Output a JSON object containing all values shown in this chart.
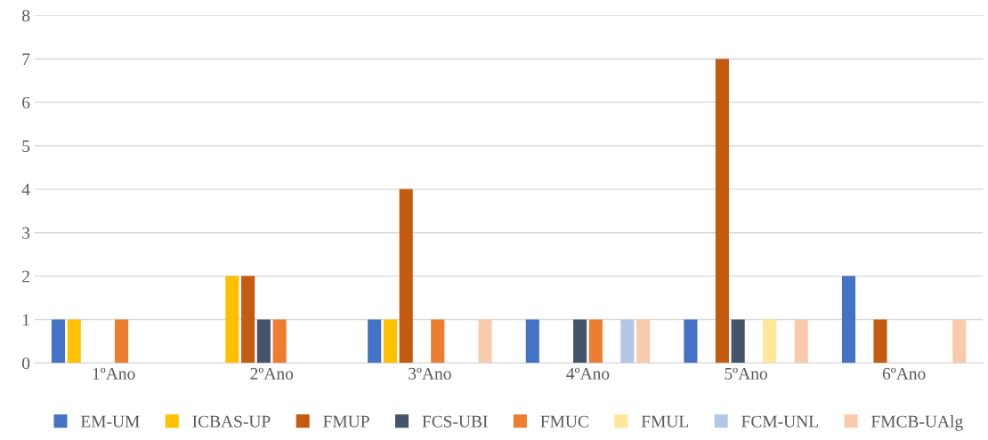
{
  "chart_data": {
    "type": "bar",
    "categories": [
      "1ºAno",
      "2ºAno",
      "3ºAno",
      "4ºAno",
      "5ºAno",
      "6ºAno"
    ],
    "series": [
      {
        "name": "EM-UM",
        "color": "#4472c4",
        "values": [
          1,
          0,
          1,
          1,
          1,
          2
        ]
      },
      {
        "name": "ICBAS-UP",
        "color": "#ffc000",
        "values": [
          1,
          2,
          1,
          0,
          0,
          0
        ]
      },
      {
        "name": "FMUP",
        "color": "#c55a11",
        "values": [
          0,
          2,
          4,
          0,
          7,
          1
        ]
      },
      {
        "name": "FCS-UBI",
        "color": "#44546a",
        "values": [
          0,
          1,
          0,
          1,
          1,
          0
        ]
      },
      {
        "name": "FMUC",
        "color": "#ed7d31",
        "values": [
          1,
          1,
          1,
          1,
          0,
          0
        ]
      },
      {
        "name": "FMUL",
        "color": "#ffe699",
        "values": [
          0,
          0,
          0,
          0,
          1,
          0
        ]
      },
      {
        "name": "FCM-UNL",
        "color": "#b4c7e7",
        "values": [
          0,
          0,
          0,
          1,
          0,
          0
        ]
      },
      {
        "name": "FMCB-UAlg",
        "color": "#f8cbad",
        "values": [
          0,
          0,
          1,
          1,
          1,
          1
        ]
      }
    ],
    "ylim": [
      0,
      8
    ],
    "yticks": [
      0,
      1,
      2,
      3,
      4,
      5,
      6,
      7,
      8
    ],
    "grid": "y",
    "legend": "bottom"
  }
}
